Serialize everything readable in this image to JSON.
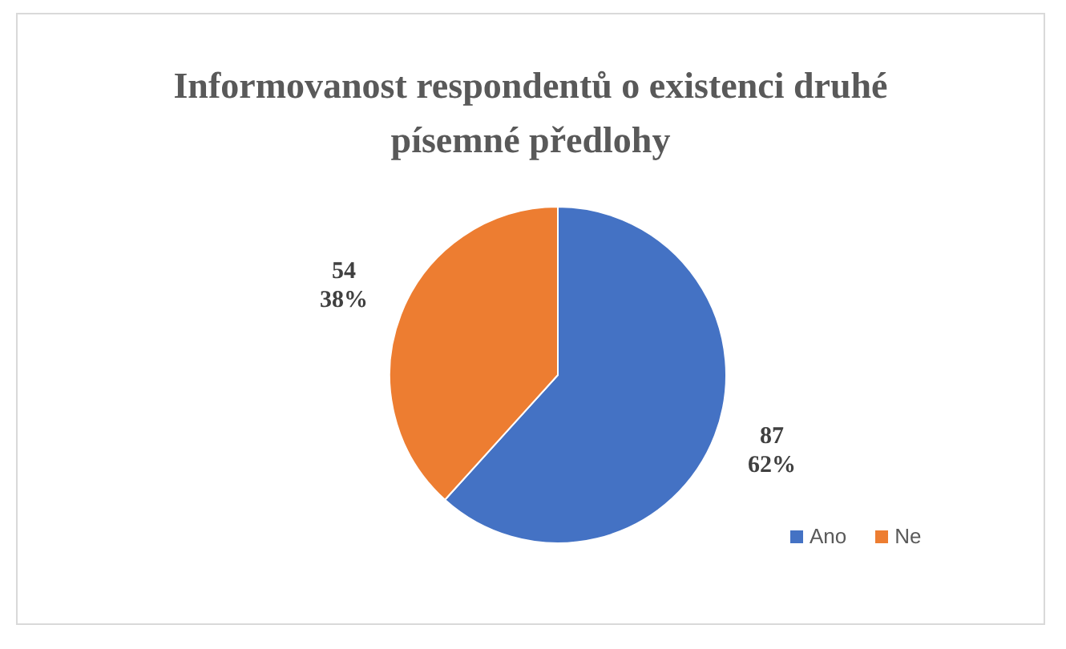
{
  "chart_data": {
    "type": "pie",
    "title": "Informovanost  respondentů o existenci  druhé písemné předlohy",
    "categories": [
      "Ano",
      "Ne"
    ],
    "values": [
      87,
      54
    ],
    "colors": [
      "#4472c4",
      "#ed7d31"
    ],
    "value_labels": [
      "87\n62%",
      "54\n38%"
    ],
    "legend": "bottom right"
  }
}
